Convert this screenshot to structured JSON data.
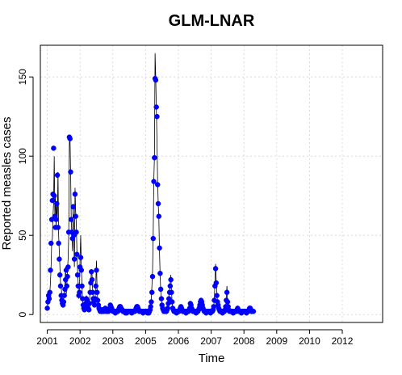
{
  "chart_data": {
    "type": "line",
    "title": "GLM-LNAR",
    "xlabel": "Time",
    "ylabel": "Reported measles cases",
    "grid": true,
    "ylim": [
      -5,
      170
    ],
    "yticks": [
      0,
      50,
      100,
      150
    ],
    "xticks": [
      {
        "label": "2001",
        "x": 1
      },
      {
        "label": "2002",
        "x": 53
      },
      {
        "label": "2003",
        "x": 105
      },
      {
        "label": "2005",
        "x": 157
      },
      {
        "label": "2006",
        "x": 209
      },
      {
        "label": "2007",
        "x": 261
      },
      {
        "label": "2008",
        "x": 313
      },
      {
        "label": "2009",
        "x": 365
      },
      {
        "label": "2010",
        "x": 417
      },
      {
        "label": "2012",
        "x": 469
      }
    ],
    "xlim": [
      -10,
      533
    ],
    "x_start": 1,
    "series": [
      {
        "style": "line",
        "color": "#000000",
        "values": [
          4,
          8,
          12,
          10,
          14,
          20,
          30,
          46,
          48,
          62,
          70,
          100,
          62,
          76,
          55,
          70,
          60,
          90,
          50,
          40,
          30,
          20,
          18,
          12,
          8,
          6,
          10,
          14,
          20,
          30,
          12,
          18,
          28,
          35,
          50,
          108,
          112,
          90,
          60,
          50,
          40,
          70,
          48,
          30,
          80,
          65,
          58,
          40,
          28,
          20,
          10,
          15,
          35,
          50,
          30,
          20,
          8,
          6,
          4,
          3,
          5,
          8,
          12,
          10,
          6,
          4,
          3,
          8,
          18,
          20,
          28,
          25,
          15,
          10,
          8,
          6,
          12,
          20,
          34,
          15,
          10,
          6,
          4,
          3,
          2,
          2,
          2,
          3,
          2,
          2,
          2,
          3,
          4,
          3,
          2,
          2,
          2,
          2,
          3,
          5,
          7,
          5,
          4,
          3,
          2,
          2,
          2,
          2,
          1,
          2,
          2,
          2,
          2,
          3,
          4,
          5,
          6,
          4,
          3,
          3,
          2,
          2,
          2,
          2,
          1,
          2,
          1,
          2,
          2,
          2,
          2,
          2,
          2,
          2,
          1,
          2,
          2,
          2,
          2,
          2,
          3,
          4,
          5,
          6,
          4,
          3,
          2,
          2,
          2,
          2,
          2,
          2,
          1,
          2,
          2,
          2,
          2,
          2,
          2,
          1,
          2,
          1,
          2,
          3,
          6,
          10,
          18,
          28,
          50,
          85,
          100,
          165,
          150,
          130,
          110,
          85,
          70,
          60,
          40,
          25,
          15,
          10,
          6,
          4,
          3,
          2,
          2,
          2,
          2,
          2,
          3,
          5,
          8,
          12,
          16,
          20,
          25,
          15,
          8,
          4,
          3,
          2,
          2,
          2,
          2,
          1,
          2,
          2,
          2,
          2,
          3,
          4,
          5,
          4,
          3,
          2,
          2,
          2,
          2,
          2,
          1,
          2,
          2,
          2,
          2,
          3,
          5,
          8,
          6,
          4,
          3,
          2,
          2,
          2,
          2,
          2,
          1,
          2,
          2,
          2,
          3,
          4,
          6,
          8,
          10,
          8,
          6,
          4,
          3,
          2,
          2,
          2,
          1,
          2,
          2,
          2,
          2,
          2,
          2,
          1,
          2,
          2,
          2,
          3,
          5,
          10,
          20,
          32,
          22,
          14,
          8,
          6,
          4,
          3,
          2,
          2,
          2,
          2,
          1,
          2,
          2,
          2,
          3,
          5,
          10,
          18,
          8,
          5,
          3,
          2,
          2,
          2,
          2,
          2,
          2,
          1,
          2,
          2,
          2,
          2,
          2,
          3,
          4,
          3,
          2,
          2,
          2,
          2,
          1,
          2,
          2,
          2,
          2,
          2,
          2,
          2,
          1,
          2,
          2,
          2,
          3,
          5,
          4,
          3,
          2,
          2,
          2,
          2
        ]
      },
      {
        "style": "points",
        "color": "#0000ff",
        "values": [
          4,
          8,
          12,
          10,
          14,
          28,
          45,
          60,
          72,
          76,
          105,
          75,
          62,
          55,
          60,
          70,
          88,
          55,
          45,
          35,
          25,
          18,
          12,
          9,
          7,
          6,
          8,
          12,
          16,
          22,
          28,
          18,
          24,
          30,
          52,
          112,
          111,
          90,
          60,
          52,
          48,
          68,
          50,
          35,
          76,
          62,
          52,
          38,
          25,
          18,
          12,
          14,
          30,
          36,
          28,
          18,
          10,
          6,
          4,
          3,
          5,
          7,
          10,
          9,
          6,
          4,
          3,
          7,
          14,
          20,
          27,
          22,
          14,
          10,
          8,
          6,
          10,
          18,
          28,
          14,
          9,
          6,
          4,
          3,
          2,
          2,
          2,
          3,
          2,
          2,
          2,
          3,
          4,
          3,
          2,
          2,
          2,
          2,
          3,
          4,
          6,
          5,
          4,
          3,
          2,
          2,
          2,
          2,
          1,
          2,
          2,
          2,
          2,
          3,
          4,
          5,
          5,
          4,
          3,
          3,
          2,
          2,
          2,
          2,
          1,
          2,
          1,
          2,
          2,
          2,
          2,
          2,
          2,
          2,
          1,
          2,
          2,
          2,
          2,
          2,
          3,
          4,
          5,
          5,
          4,
          3,
          2,
          2,
          2,
          2,
          2,
          2,
          1,
          2,
          2,
          2,
          2,
          2,
          2,
          1,
          2,
          1,
          2,
          3,
          5,
          8,
          14,
          24,
          48,
          84,
          99,
          149,
          148,
          131,
          125,
          82,
          70,
          62,
          42,
          26,
          16,
          10,
          6,
          4,
          3,
          2,
          2,
          2,
          2,
          2,
          3,
          4,
          7,
          10,
          14,
          18,
          22,
          14,
          8,
          4,
          3,
          2,
          2,
          2,
          2,
          1,
          2,
          2,
          2,
          2,
          3,
          4,
          5,
          4,
          3,
          2,
          2,
          2,
          2,
          2,
          1,
          2,
          2,
          2,
          2,
          3,
          4,
          7,
          6,
          4,
          3,
          2,
          2,
          2,
          2,
          2,
          1,
          2,
          2,
          2,
          3,
          4,
          6,
          8,
          9,
          8,
          6,
          4,
          3,
          2,
          2,
          2,
          1,
          2,
          2,
          2,
          2,
          2,
          2,
          1,
          2,
          2,
          2,
          3,
          5,
          9,
          18,
          29,
          20,
          12,
          8,
          6,
          4,
          3,
          2,
          2,
          2,
          2,
          1,
          2,
          2,
          2,
          3,
          5,
          9,
          14,
          8,
          5,
          3,
          2,
          2,
          2,
          2,
          2,
          2,
          1,
          2,
          2,
          2,
          2,
          2,
          3,
          4,
          3,
          2,
          2,
          2,
          2,
          1,
          2,
          2,
          2,
          2,
          2,
          2,
          2,
          1,
          2,
          2,
          2,
          3,
          4,
          4,
          3,
          2,
          2,
          2,
          2
        ]
      }
    ]
  }
}
